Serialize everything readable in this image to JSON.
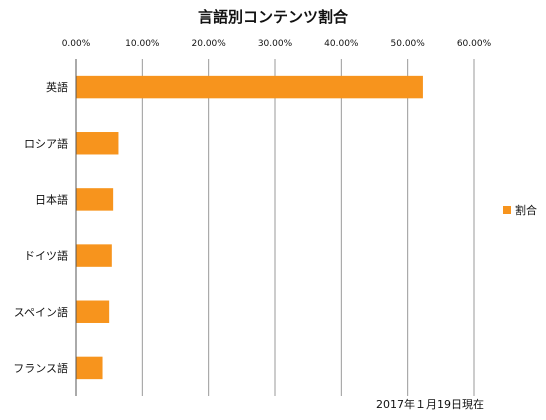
{
  "chart_data": {
    "type": "bar",
    "orientation": "horizontal",
    "title": "言語別コンテンツ割合",
    "categories": [
      "英語",
      "ロシア語",
      "日本語",
      "ドイツ語",
      "スペイン語",
      "フランス語"
    ],
    "series": [
      {
        "name": "割合",
        "values": [
          52.3,
          6.4,
          5.6,
          5.4,
          5.0,
          4.0
        ],
        "color": "#f7941d"
      }
    ],
    "xlim": [
      0,
      60
    ],
    "xticks": [
      "0.00%",
      "10.00%",
      "20.00%",
      "30.00%",
      "40.00%",
      "50.00%",
      "60.00%"
    ],
    "x_axis_position": "top",
    "grid": true,
    "legend_position": "right",
    "annotation": "2017年１月19日現在"
  }
}
